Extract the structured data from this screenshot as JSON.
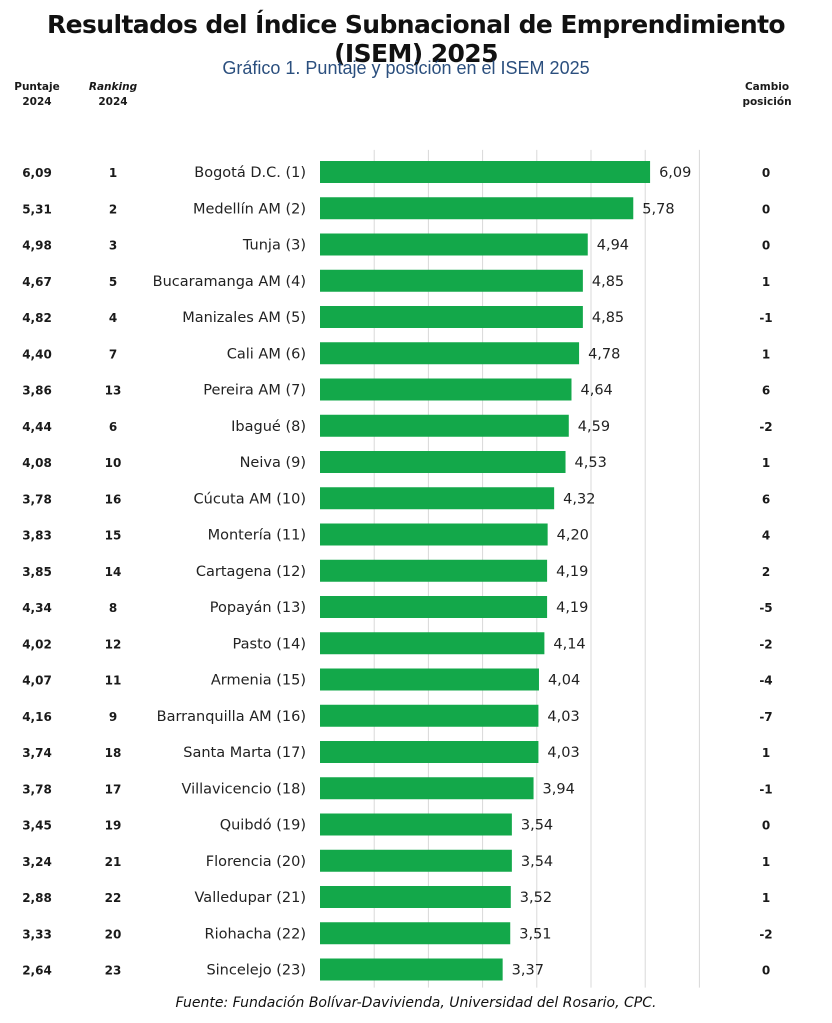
{
  "title": "Resultados del Índice Subnacional de Emprendimiento (ISEM) 2025",
  "subtitle": "Gráfico 1. Puntaje y posición en el ISEM 2025",
  "headers": {
    "puntaje_2024_line1": "Puntaje",
    "puntaje_2024_line2": "2024",
    "ranking_2024_line1": "Ranking",
    "ranking_2024_line2": "2024",
    "cambio_line1": "Cambio",
    "cambio_line2": "posición"
  },
  "source": "Fuente: Fundación Bolívar-Davivienda, Universidad del Rosario, CPC.",
  "colors": {
    "bar": "#13a84a",
    "grid": "#d9d9d9",
    "subtitle": "#2b4f7e"
  },
  "chart_data": {
    "type": "bar",
    "orientation": "horizontal",
    "grid": true,
    "xlim": [
      0,
      7
    ],
    "categories": [
      "Bogotá D.C. (1)",
      "Medellín AM (2)",
      "Tunja (3)",
      "Bucaramanga AM (4)",
      "Manizales AM (5)",
      "Cali AM (6)",
      "Pereira AM (7)",
      "Ibagué (8)",
      "Neiva (9)",
      "Cúcuta AM (10)",
      "Montería (11)",
      "Cartagena (12)",
      "Popayán (13)",
      "Pasto (14)",
      "Armenia (15)",
      "Barranquilla AM (16)",
      "Santa Marta (17)",
      "Villavicencio (18)",
      "Quibdó (19)",
      "Florencia (20)",
      "Valledupar (21)",
      "Riohacha (22)",
      "Sincelejo (23)"
    ],
    "values": [
      6.09,
      5.78,
      4.94,
      4.85,
      4.85,
      4.78,
      4.64,
      4.59,
      4.53,
      4.32,
      4.2,
      4.19,
      4.19,
      4.14,
      4.04,
      4.03,
      4.03,
      3.94,
      3.54,
      3.54,
      3.52,
      3.51,
      3.37
    ],
    "value_labels": [
      "6,09",
      "5,78",
      "4,94",
      "4,85",
      "4,85",
      "4,78",
      "4,64",
      "4,59",
      "4,53",
      "4,32",
      "4,20",
      "4,19",
      "4,19",
      "4,14",
      "4,04",
      "4,03",
      "4,03",
      "3,94",
      "3,54",
      "3,54",
      "3,52",
      "3,51",
      "3,37"
    ],
    "puntaje_2024": [
      "6,09",
      "5,31",
      "4,98",
      "4,67",
      "4,82",
      "4,40",
      "3,86",
      "4,44",
      "4,08",
      "3,78",
      "3,83",
      "3,85",
      "4,34",
      "4,02",
      "4,07",
      "4,16",
      "3,74",
      "3,78",
      "3,45",
      "3,24",
      "2,88",
      "3,33",
      "2,64"
    ],
    "ranking_2024": [
      "1",
      "2",
      "3",
      "5",
      "4",
      "7",
      "13",
      "6",
      "10",
      "16",
      "15",
      "14",
      "8",
      "12",
      "11",
      "9",
      "18",
      "17",
      "19",
      "21",
      "22",
      "20",
      "23"
    ],
    "cambio_posicion": [
      "0",
      "0",
      "0",
      "1",
      "-1",
      "1",
      "6",
      "-2",
      "1",
      "6",
      "4",
      "2",
      "-5",
      "-2",
      "-4",
      "-7",
      "1",
      "-1",
      "0",
      "1",
      "1",
      "-2",
      "0"
    ]
  }
}
